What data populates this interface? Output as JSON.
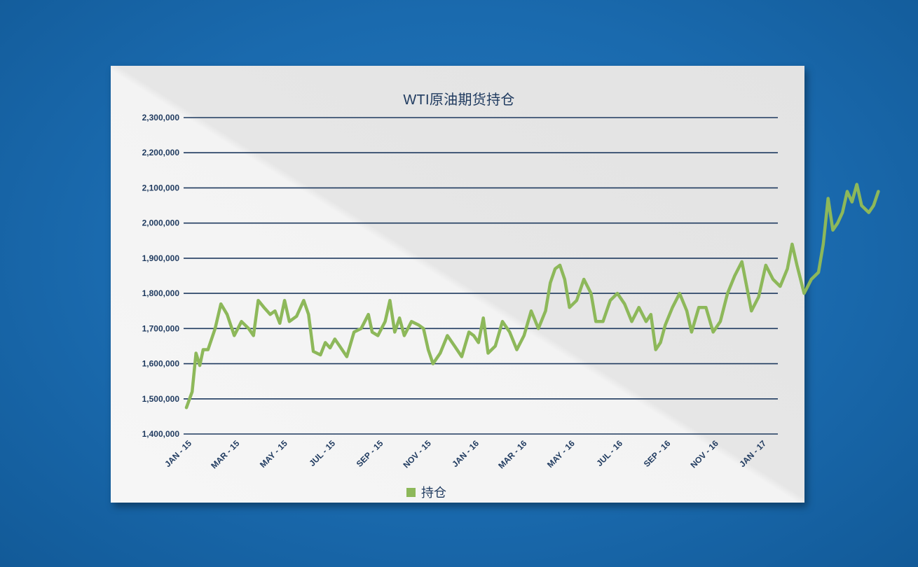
{
  "chart_data": {
    "type": "line",
    "title": "WTI原油期货持仓",
    "xlabel": "",
    "ylabel": "",
    "ylim": [
      1400000,
      2300000
    ],
    "y_ticks": [
      "2,300,000",
      "2,200,000",
      "2,100,000",
      "2,000,000",
      "1,900,000",
      "1,800,000",
      "1,700,000",
      "1,600,000",
      "1,500,000",
      "1,400,000"
    ],
    "x_ticks": [
      "JAN - 15",
      "MAR - 15",
      "MAY - 15",
      "JUL - 15",
      "SEP - 15",
      "NOV - 15",
      "JAN - 16",
      "MAR - 16",
      "MAY - 16",
      "JUL - 16",
      "SEP - 16",
      "NOV - 16",
      "JAN - 17"
    ],
    "grid": true,
    "legend": "bottom",
    "series": [
      {
        "name": "持仓",
        "color": "#8db85a",
        "points": [
          [
            0,
            1475000
          ],
          [
            0.12,
            1520000
          ],
          [
            0.2,
            1630000
          ],
          [
            0.28,
            1595000
          ],
          [
            0.35,
            1640000
          ],
          [
            0.45,
            1640000
          ],
          [
            0.6,
            1700000
          ],
          [
            0.72,
            1770000
          ],
          [
            0.85,
            1740000
          ],
          [
            1.0,
            1680000
          ],
          [
            1.15,
            1720000
          ],
          [
            1.3,
            1700000
          ],
          [
            1.4,
            1680000
          ],
          [
            1.5,
            1780000
          ],
          [
            1.62,
            1760000
          ],
          [
            1.75,
            1740000
          ],
          [
            1.85,
            1750000
          ],
          [
            1.95,
            1715000
          ],
          [
            2.05,
            1780000
          ],
          [
            2.15,
            1720000
          ],
          [
            2.3,
            1735000
          ],
          [
            2.45,
            1780000
          ],
          [
            2.55,
            1740000
          ],
          [
            2.65,
            1635000
          ],
          [
            2.8,
            1625000
          ],
          [
            2.9,
            1660000
          ],
          [
            3.0,
            1645000
          ],
          [
            3.1,
            1670000
          ],
          [
            3.2,
            1650000
          ],
          [
            3.35,
            1620000
          ],
          [
            3.5,
            1690000
          ],
          [
            3.65,
            1700000
          ],
          [
            3.8,
            1740000
          ],
          [
            3.88,
            1690000
          ],
          [
            4.0,
            1680000
          ],
          [
            4.15,
            1720000
          ],
          [
            4.25,
            1780000
          ],
          [
            4.35,
            1690000
          ],
          [
            4.45,
            1730000
          ],
          [
            4.55,
            1680000
          ],
          [
            4.7,
            1720000
          ],
          [
            4.85,
            1710000
          ],
          [
            4.95,
            1700000
          ],
          [
            5.05,
            1640000
          ],
          [
            5.15,
            1600000
          ],
          [
            5.3,
            1630000
          ],
          [
            5.45,
            1680000
          ],
          [
            5.6,
            1650000
          ],
          [
            5.75,
            1620000
          ],
          [
            5.9,
            1690000
          ],
          [
            6.0,
            1680000
          ],
          [
            6.1,
            1660000
          ],
          [
            6.2,
            1730000
          ],
          [
            6.3,
            1630000
          ],
          [
            6.45,
            1650000
          ],
          [
            6.6,
            1720000
          ],
          [
            6.75,
            1690000
          ],
          [
            6.9,
            1640000
          ],
          [
            7.05,
            1680000
          ],
          [
            7.2,
            1750000
          ],
          [
            7.35,
            1700000
          ],
          [
            7.5,
            1750000
          ],
          [
            7.6,
            1830000
          ],
          [
            7.7,
            1870000
          ],
          [
            7.8,
            1880000
          ],
          [
            7.9,
            1840000
          ],
          [
            8.0,
            1760000
          ],
          [
            8.15,
            1780000
          ],
          [
            8.3,
            1840000
          ],
          [
            8.45,
            1800000
          ],
          [
            8.55,
            1720000
          ],
          [
            8.7,
            1720000
          ],
          [
            8.85,
            1780000
          ],
          [
            9.0,
            1800000
          ],
          [
            9.15,
            1770000
          ],
          [
            9.3,
            1720000
          ],
          [
            9.45,
            1760000
          ],
          [
            9.6,
            1720000
          ],
          [
            9.7,
            1740000
          ],
          [
            9.8,
            1640000
          ],
          [
            9.9,
            1660000
          ],
          [
            10.0,
            1710000
          ],
          [
            10.15,
            1760000
          ],
          [
            10.3,
            1800000
          ],
          [
            10.45,
            1750000
          ],
          [
            10.55,
            1690000
          ],
          [
            10.7,
            1760000
          ],
          [
            10.85,
            1760000
          ],
          [
            11.0,
            1690000
          ],
          [
            11.15,
            1720000
          ],
          [
            11.3,
            1800000
          ],
          [
            11.45,
            1850000
          ],
          [
            11.6,
            1890000
          ],
          [
            11.7,
            1820000
          ],
          [
            11.8,
            1750000
          ],
          [
            11.95,
            1790000
          ],
          [
            12.1,
            1880000
          ],
          [
            12.25,
            1840000
          ],
          [
            12.4,
            1820000
          ],
          [
            12.55,
            1870000
          ],
          [
            12.65,
            1940000
          ],
          [
            12.75,
            1880000
          ],
          [
            12.9,
            1800000
          ],
          [
            13.05,
            1840000
          ],
          [
            13.2,
            1860000
          ],
          [
            13.3,
            1940000
          ],
          [
            13.4,
            2070000
          ],
          [
            13.5,
            1980000
          ],
          [
            13.6,
            2000000
          ],
          [
            13.7,
            2030000
          ],
          [
            13.8,
            2090000
          ],
          [
            13.9,
            2060000
          ],
          [
            14.0,
            2110000
          ],
          [
            14.1,
            2050000
          ],
          [
            14.25,
            2030000
          ],
          [
            14.35,
            2050000
          ],
          [
            14.45,
            2090000
          ]
        ]
      }
    ]
  }
}
